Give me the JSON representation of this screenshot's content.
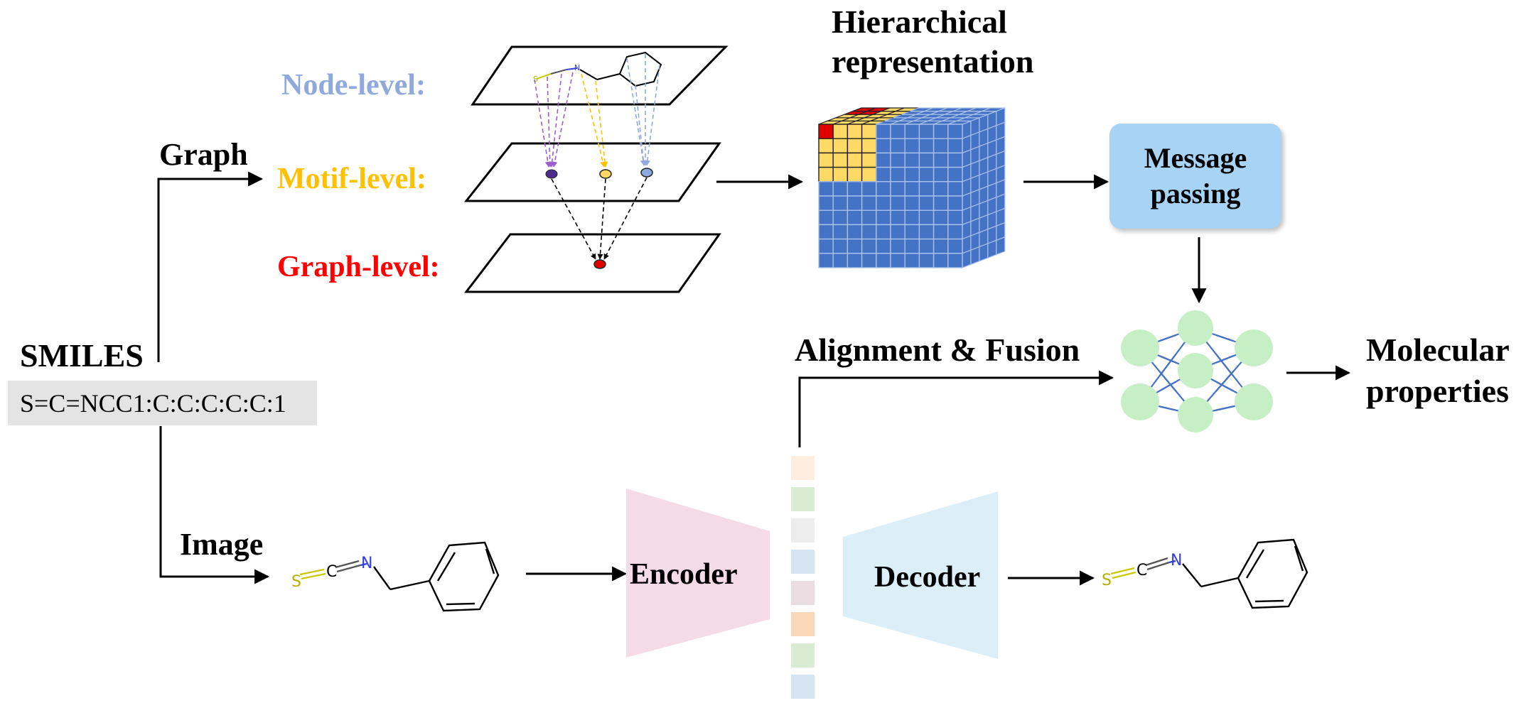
{
  "titles": {
    "hierarchical_line1": "Hierarchical",
    "hierarchical_line2": "representation"
  },
  "levels": {
    "node": "Node-level:",
    "motif": "Motif-level:",
    "graph": "Graph-level:"
  },
  "branches": {
    "graph": "Graph",
    "image": "Image"
  },
  "smiles": {
    "label": "SMILES",
    "string": "S=C=NCC1:C:C:C:C:C:1"
  },
  "message_passing": {
    "line1": "Message",
    "line2": "passing"
  },
  "alignment": "Alignment & Fusion",
  "output": {
    "line1": "Molecular",
    "line2": "properties"
  },
  "encoder": "Encoder",
  "decoder": "Decoder",
  "molecule_atoms": {
    "s": "S",
    "c": "C",
    "n": "N"
  },
  "colors": {
    "node_level": "#8fa9dc",
    "motif_level": "#ffc000",
    "graph_level": "#ff0000",
    "cube_blue": "#4472c4",
    "cube_yellow": "#ffd966",
    "message_box": "#a7d3f5",
    "nn_node": "#c6efc6",
    "nn_edge": "#4472c4",
    "encoder": "#f5dbe6",
    "decoder": "#dceef7",
    "latent_cells": [
      "#fdeee0",
      "#d9ebd3",
      "#ededed",
      "#d5e3f3",
      "#eadde2",
      "#f8d8b8",
      "#d9ebd3",
      "#d5e3f3"
    ]
  }
}
